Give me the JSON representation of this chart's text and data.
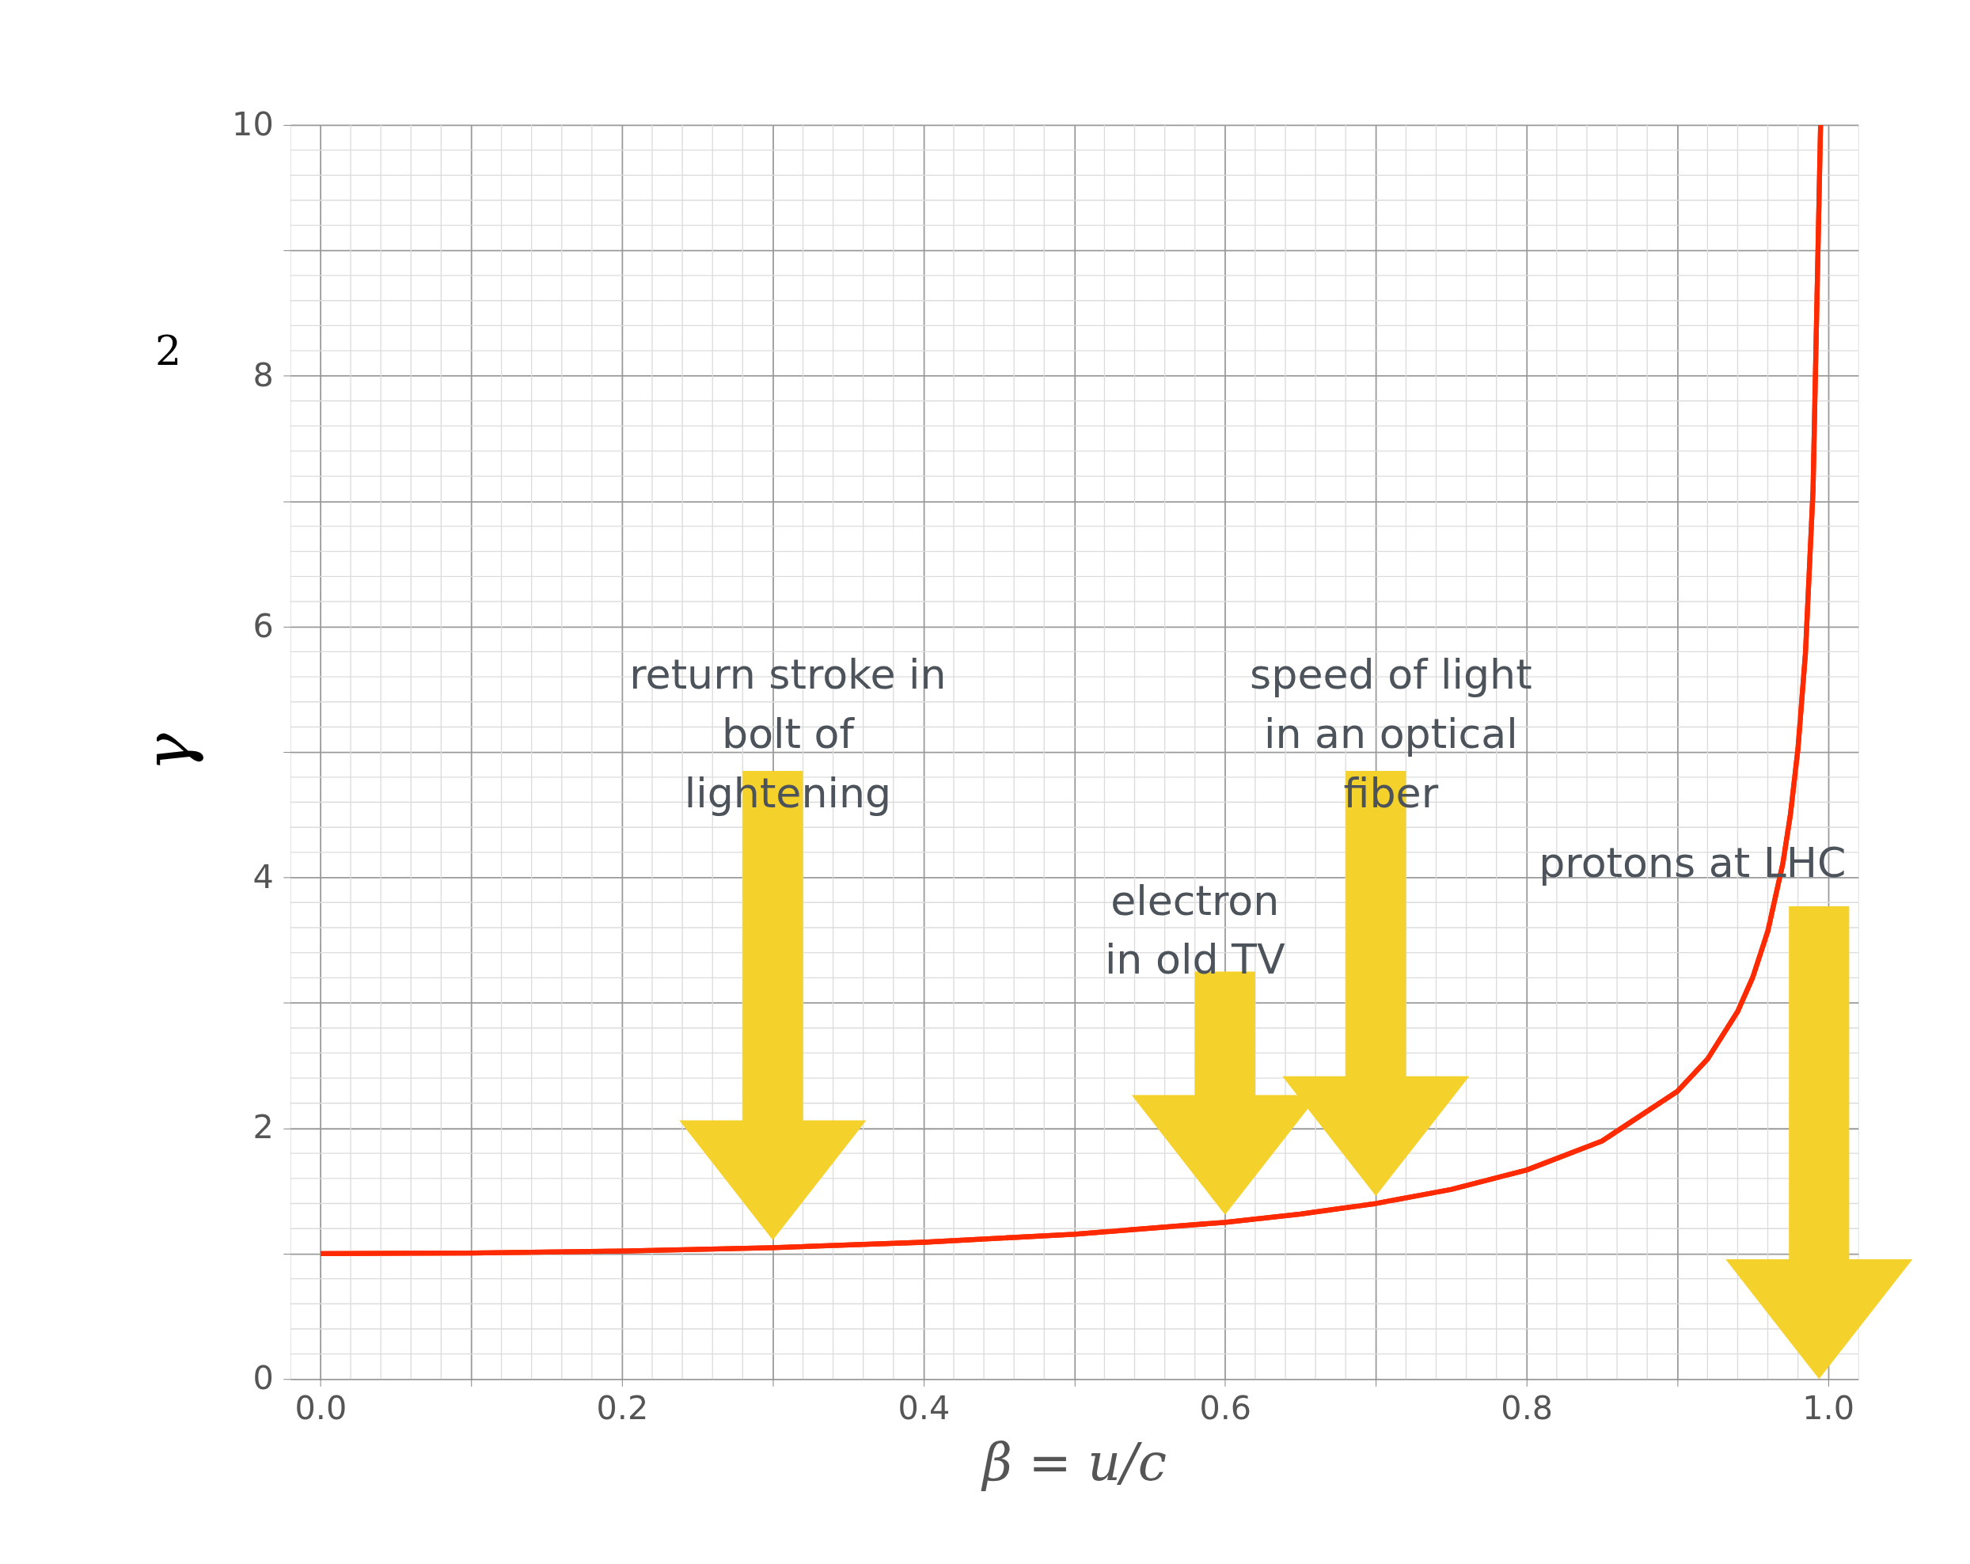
{
  "chart_data": {
    "type": "line",
    "xlabel": "β = u/c",
    "ylabel": "γ",
    "x": [
      0,
      0.1,
      0.2,
      0.3,
      0.4,
      0.5,
      0.6,
      0.65,
      0.7,
      0.75,
      0.8,
      0.85,
      0.9,
      0.92,
      0.94,
      0.95,
      0.96,
      0.97,
      0.975,
      0.98,
      0.985,
      0.99,
      0.995
    ],
    "series": [
      {
        "color": "#ff2a00",
        "values": [
          1,
          1.005,
          1.021,
          1.048,
          1.091,
          1.155,
          1.25,
          1.316,
          1.4,
          1.512,
          1.667,
          1.898,
          2.294,
          2.551,
          2.931,
          3.203,
          3.571,
          4.113,
          4.502,
          5.025,
          5.795,
          7.089,
          10.0
        ]
      }
    ],
    "xlim": [
      -0.02,
      1.02
    ],
    "ylim": [
      0,
      10
    ],
    "xticks": [
      {
        "value": 0,
        "label": "0.0"
      },
      {
        "value": 0.1,
        "label": null
      },
      {
        "value": 0.2,
        "label": "0.2"
      },
      {
        "value": 0.3,
        "label": null
      },
      {
        "value": 0.4,
        "label": "0.4"
      },
      {
        "value": 0.5,
        "label": null
      },
      {
        "value": 0.6,
        "label": "0.6"
      },
      {
        "value": 0.7,
        "label": null
      },
      {
        "value": 0.8,
        "label": "0.8"
      },
      {
        "value": 0.9,
        "label": null
      },
      {
        "value": 1,
        "label": "1.0"
      }
    ],
    "yticks": [
      0,
      {
        "value": 1,
        "label": null
      },
      2,
      {
        "value": 3,
        "label": null
      },
      4,
      {
        "value": 5,
        "label": null
      },
      6,
      {
        "value": 7,
        "label": null
      },
      8,
      {
        "value": 9,
        "label": null
      },
      10
    ],
    "grid": true,
    "annotations": [
      "return stroke in\nbolt of\nlightening",
      "electron\nin old TV",
      "speed of light\nin an optical\nfiber",
      "protons at LHC",
      "2"
    ]
  }
}
